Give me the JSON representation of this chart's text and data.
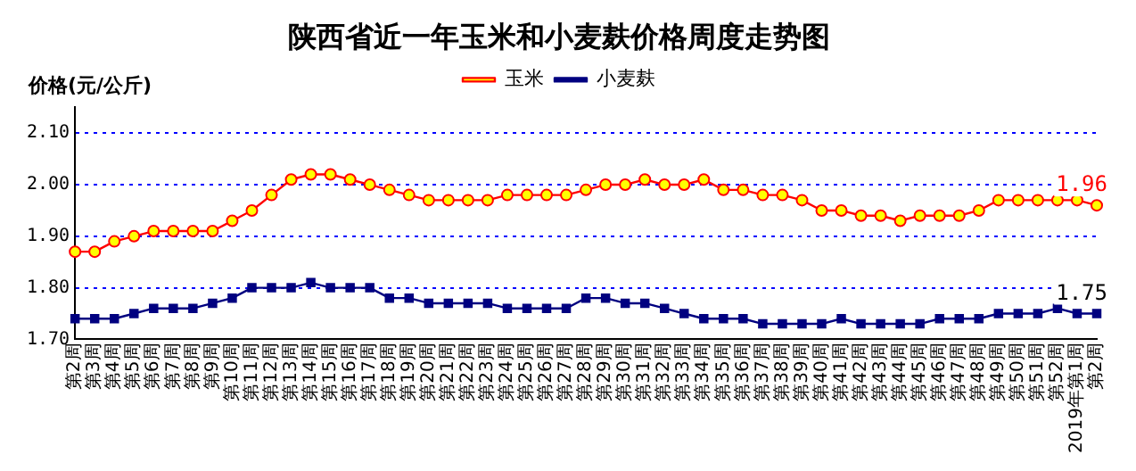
{
  "chart_data": {
    "type": "line",
    "title": "陕西省近一年玉米和小麦麸价格周度走势图",
    "ylabel": "价格(元/公斤)",
    "categories": [
      "第2周",
      "第3周",
      "第4周",
      "第5周",
      "第6周",
      "第7周",
      "第8周",
      "第9周",
      "第10周",
      "第11周",
      "第12周",
      "第13周",
      "第14周",
      "第15周",
      "第16周",
      "第17周",
      "第18周",
      "第19周",
      "第20周",
      "第21周",
      "第22周",
      "第23周",
      "第24周",
      "第25周",
      "第26周",
      "第27周",
      "第28周",
      "第29周",
      "第30周",
      "第31周",
      "第32周",
      "第33周",
      "第34周",
      "第35周",
      "第36周",
      "第37周",
      "第38周",
      "第39周",
      "第40周",
      "第41周",
      "第42周",
      "第43周",
      "第44周",
      "第45周",
      "第46周",
      "第47周",
      "第48周",
      "第49周",
      "第50周",
      "第51周",
      "第52周",
      "2019年第1周",
      "第2周"
    ],
    "series": [
      {
        "name": "玉米",
        "color": "#ff0000",
        "marker": "circle",
        "values": [
          1.87,
          1.87,
          1.89,
          1.9,
          1.91,
          1.91,
          1.91,
          1.91,
          1.93,
          1.95,
          1.98,
          2.01,
          2.02,
          2.02,
          2.01,
          2.0,
          1.99,
          1.98,
          1.97,
          1.97,
          1.97,
          1.97,
          1.98,
          1.98,
          1.98,
          1.98,
          1.99,
          2.0,
          2.0,
          2.01,
          2.0,
          2.0,
          2.01,
          1.99,
          1.99,
          1.98,
          1.98,
          1.97,
          1.95,
          1.95,
          1.94,
          1.94,
          1.93,
          1.94,
          1.94,
          1.94,
          1.95,
          1.97,
          1.97,
          1.97,
          1.97,
          1.97,
          1.96
        ],
        "value_labels": [
          null,
          null,
          null,
          null,
          null,
          null,
          null,
          null,
          null,
          null,
          null,
          null,
          null,
          null,
          null,
          null,
          null,
          null,
          null,
          null,
          null,
          null,
          null,
          null,
          null,
          null,
          null,
          null,
          null,
          null,
          null,
          null,
          null,
          null,
          null,
          null,
          null,
          null,
          null,
          null,
          null,
          null,
          null,
          null,
          null,
          null,
          null,
          null,
          null,
          null,
          null,
          null,
          "1.96"
        ]
      },
      {
        "name": "小麦麸",
        "color": "#000080",
        "marker": "square",
        "values": [
          1.74,
          1.74,
          1.74,
          1.75,
          1.76,
          1.76,
          1.76,
          1.77,
          1.78,
          1.8,
          1.8,
          1.8,
          1.81,
          1.8,
          1.8,
          1.8,
          1.78,
          1.78,
          1.77,
          1.77,
          1.77,
          1.77,
          1.76,
          1.76,
          1.76,
          1.76,
          1.78,
          1.78,
          1.77,
          1.77,
          1.76,
          1.75,
          1.74,
          1.74,
          1.74,
          1.73,
          1.73,
          1.73,
          1.73,
          1.74,
          1.73,
          1.73,
          1.73,
          1.73,
          1.74,
          1.74,
          1.74,
          1.75,
          1.75,
          1.75,
          1.76,
          1.75,
          1.75
        ],
        "value_labels": [
          null,
          null,
          null,
          null,
          null,
          null,
          null,
          null,
          null,
          null,
          null,
          null,
          null,
          null,
          null,
          null,
          null,
          null,
          null,
          null,
          null,
          null,
          null,
          null,
          null,
          null,
          null,
          null,
          null,
          null,
          null,
          null,
          null,
          null,
          null,
          null,
          null,
          null,
          null,
          null,
          null,
          null,
          null,
          null,
          null,
          null,
          null,
          null,
          null,
          null,
          null,
          null,
          "1.75"
        ]
      }
    ],
    "ylim": [
      1.7,
      2.15
    ],
    "yticks": [
      {
        "value": 1.7,
        "label": "1.70"
      },
      {
        "value": 1.8,
        "label": "1.80"
      },
      {
        "value": 1.9,
        "label": "1.90"
      },
      {
        "value": 2.0,
        "label": "2.00"
      },
      {
        "value": 2.1,
        "label": "2.10"
      }
    ],
    "grid": "y",
    "legend": "top",
    "line_style": "solid"
  }
}
